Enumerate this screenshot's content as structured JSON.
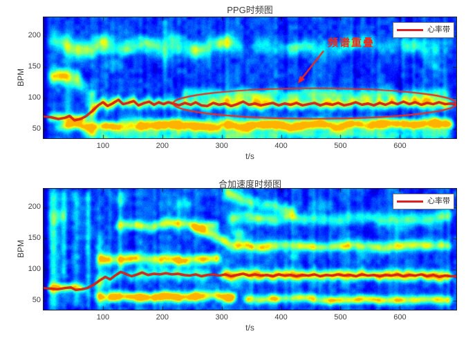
{
  "page": {
    "background": "#ffffff"
  },
  "chart_data": [
    {
      "type": "heatmap",
      "title": "PPG时频图",
      "xlabel": "t/s",
      "ylabel": "BPM",
      "xlim": [
        0,
        695
      ],
      "ylim": [
        35,
        230
      ],
      "xticks": [
        100,
        200,
        300,
        400,
        500,
        600
      ],
      "yticks": [
        50,
        100,
        150,
        200
      ],
      "colormap": "jet",
      "grid": false,
      "legend": {
        "label": "心率带",
        "position": "northeast",
        "line_color": "#e02020"
      },
      "hr_line": {
        "name": "心率带",
        "color": "#e82420",
        "points": [
          [
            0,
            70
          ],
          [
            12,
            69
          ],
          [
            25,
            66
          ],
          [
            36,
            68
          ],
          [
            44,
            71
          ],
          [
            52,
            64
          ],
          [
            62,
            66
          ],
          [
            72,
            71
          ],
          [
            82,
            79
          ],
          [
            92,
            88
          ],
          [
            100,
            93
          ],
          [
            108,
            87
          ],
          [
            116,
            91
          ],
          [
            126,
            97
          ],
          [
            134,
            90
          ],
          [
            142,
            92
          ],
          [
            152,
            95
          ],
          [
            160,
            88
          ],
          [
            170,
            92
          ],
          [
            178,
            94
          ],
          [
            186,
            89
          ],
          [
            194,
            93
          ],
          [
            202,
            90
          ],
          [
            210,
            93
          ],
          [
            218,
            91
          ],
          [
            228,
            88
          ],
          [
            238,
            92
          ],
          [
            248,
            89
          ],
          [
            256,
            93
          ],
          [
            266,
            88
          ],
          [
            276,
            87
          ],
          [
            286,
            92
          ],
          [
            296,
            89
          ],
          [
            306,
            91
          ],
          [
            316,
            87
          ],
          [
            326,
            90
          ],
          [
            336,
            94
          ],
          [
            346,
            89
          ],
          [
            356,
            91
          ],
          [
            366,
            88
          ],
          [
            376,
            90
          ],
          [
            386,
            92
          ],
          [
            396,
            88
          ],
          [
            406,
            91
          ],
          [
            416,
            89
          ],
          [
            426,
            92
          ],
          [
            436,
            88
          ],
          [
            446,
            90
          ],
          [
            456,
            92
          ],
          [
            466,
            88
          ],
          [
            476,
            91
          ],
          [
            486,
            89
          ],
          [
            496,
            92
          ],
          [
            506,
            88
          ],
          [
            516,
            90
          ],
          [
            526,
            93
          ],
          [
            536,
            89
          ],
          [
            546,
            91
          ],
          [
            556,
            88
          ],
          [
            566,
            92
          ],
          [
            576,
            89
          ],
          [
            586,
            93
          ],
          [
            596,
            90
          ],
          [
            606,
            94
          ],
          [
            616,
            90
          ],
          [
            626,
            93
          ],
          [
            636,
            89
          ],
          [
            646,
            92
          ],
          [
            656,
            90
          ],
          [
            666,
            93
          ],
          [
            676,
            90
          ],
          [
            686,
            91
          ],
          [
            695,
            90
          ]
        ]
      },
      "annotation": {
        "text": "频谱重叠",
        "color": "#f02a1a",
        "text_at": {
          "t": 518,
          "bpm": 190
        },
        "arrow": {
          "from": {
            "t": 471,
            "bpm": 175
          },
          "to": {
            "t": 428,
            "bpm": 123
          }
        },
        "ellipse": {
          "t": 457,
          "bpm": 91,
          "rt": 239,
          "rbpm": 24.5
        }
      },
      "texture": {
        "seed": 7,
        "base": 0.1,
        "bands": [
          {
            "bpm": 55,
            "width": 5.5,
            "wiggle": 3.5,
            "t": [
              14,
              695
            ],
            "i": 0.55,
            "ramp": 110
          },
          {
            "bpm": 68,
            "width": 5,
            "wiggle": 2,
            "t": [
              0,
              78
            ],
            "i": 0.42
          },
          {
            "follow": true,
            "offset": 0,
            "width": 6,
            "wiggle": 0,
            "t": [
              70,
              695
            ],
            "i": 0.38
          },
          {
            "bpm": 104,
            "width": 7,
            "wiggle": 4,
            "t": [
              225,
              690
            ],
            "i": 0.26
          },
          {
            "bpm": 62,
            "width": 5,
            "wiggle": 3,
            "t": [
              120,
              695
            ],
            "i": 0.2
          },
          {
            "bpm": 40,
            "width": 6,
            "wiggle": 3,
            "t": [
              60,
              695
            ],
            "i": 0.22
          },
          {
            "bpm": 183,
            "width": 10,
            "wiggle": 8,
            "t": [
              25,
              345
            ],
            "i": 0.22
          },
          {
            "bpm": 185,
            "width": 9,
            "wiggle": 8,
            "t": [
              345,
              695
            ],
            "i": 0.17
          },
          {
            "bpm": 135,
            "width": 8,
            "wiggle": 5,
            "t": [
              0,
              70
            ],
            "i": 0.3
          }
        ],
        "columns": [
          {
            "t": 80,
            "w": 7,
            "i": 0.22,
            "range": [
              35,
              115
            ]
          },
          {
            "t": 40,
            "w": 5,
            "i": 0.1,
            "range": [
              35,
              230
            ]
          },
          {
            "t": 205,
            "w": 5,
            "i": 0.1,
            "range": [
              120,
              230
            ]
          }
        ],
        "blobs": [
          {
            "t": 25,
            "bpm": 190,
            "rt": 14,
            "rb": 9,
            "i": 0.22
          },
          {
            "t": 58,
            "bpm": 172,
            "rt": 12,
            "rb": 8,
            "i": 0.2
          },
          {
            "t": 100,
            "bpm": 193,
            "rt": 12,
            "rb": 8,
            "i": 0.22
          },
          {
            "t": 140,
            "bpm": 178,
            "rt": 11,
            "rb": 7,
            "i": 0.2
          },
          {
            "t": 180,
            "bpm": 190,
            "rt": 12,
            "rb": 7,
            "i": 0.2
          },
          {
            "t": 220,
            "bpm": 195,
            "rt": 10,
            "rb": 7,
            "i": 0.18
          },
          {
            "t": 262,
            "bpm": 180,
            "rt": 11,
            "rb": 7,
            "i": 0.17
          },
          {
            "t": 305,
            "bpm": 190,
            "rt": 12,
            "rb": 7,
            "i": 0.18
          },
          {
            "t": 30,
            "bpm": 135,
            "rt": 12,
            "rb": 8,
            "i": 0.22
          },
          {
            "t": 62,
            "bpm": 120,
            "rt": 9,
            "rb": 7,
            "i": 0.2
          },
          {
            "t": 120,
            "bpm": 152,
            "rt": 9,
            "rb": 6,
            "i": 0.16
          },
          {
            "t": 430,
            "bpm": 182,
            "rt": 11,
            "rb": 7,
            "i": 0.14
          },
          {
            "t": 520,
            "bpm": 188,
            "rt": 11,
            "rb": 7,
            "i": 0.14
          },
          {
            "t": 615,
            "bpm": 180,
            "rt": 11,
            "rb": 7,
            "i": 0.14
          },
          {
            "t": 660,
            "bpm": 150,
            "rt": 9,
            "rb": 6,
            "i": 0.13
          }
        ]
      }
    },
    {
      "type": "heatmap",
      "title": "合加速度时频图",
      "xlabel": "t/s",
      "ylabel": "BPM",
      "xlim": [
        0,
        695
      ],
      "ylim": [
        35,
        230
      ],
      "xticks": [
        100,
        200,
        300,
        400,
        500,
        600
      ],
      "yticks": [
        50,
        100,
        150,
        200
      ],
      "colormap": "jet",
      "grid": false,
      "legend": {
        "label": "心率带",
        "position": "northeast",
        "line_color": "#e02020"
      },
      "hr_line": {
        "name": "心率带",
        "color": "#e82420",
        "points": [
          [
            0,
            70
          ],
          [
            12,
            69
          ],
          [
            24,
            68
          ],
          [
            36,
            70
          ],
          [
            46,
            71
          ],
          [
            54,
            67
          ],
          [
            64,
            68
          ],
          [
            74,
            70
          ],
          [
            84,
            75
          ],
          [
            94,
            82
          ],
          [
            104,
            88
          ],
          [
            112,
            84
          ],
          [
            122,
            91
          ],
          [
            130,
            96
          ],
          [
            140,
            92
          ],
          [
            148,
            89
          ],
          [
            158,
            92
          ],
          [
            166,
            95
          ],
          [
            176,
            91
          ],
          [
            186,
            93
          ],
          [
            196,
            92
          ],
          [
            206,
            94
          ],
          [
            216,
            92
          ],
          [
            226,
            93
          ],
          [
            236,
            91
          ],
          [
            246,
            90
          ],
          [
            256,
            92
          ],
          [
            266,
            89
          ],
          [
            276,
            91
          ],
          [
            286,
            92
          ],
          [
            296,
            90
          ],
          [
            306,
            92
          ],
          [
            316,
            89
          ],
          [
            326,
            91
          ],
          [
            336,
            93
          ],
          [
            346,
            90
          ],
          [
            356,
            92
          ],
          [
            366,
            90
          ],
          [
            376,
            91
          ],
          [
            386,
            89
          ],
          [
            396,
            92
          ],
          [
            406,
            90
          ],
          [
            416,
            91
          ],
          [
            426,
            89
          ],
          [
            436,
            91
          ],
          [
            446,
            90
          ],
          [
            456,
            92
          ],
          [
            466,
            89
          ],
          [
            476,
            91
          ],
          [
            486,
            90
          ],
          [
            496,
            92
          ],
          [
            506,
            90
          ],
          [
            516,
            91
          ],
          [
            526,
            89
          ],
          [
            536,
            92
          ],
          [
            546,
            90
          ],
          [
            556,
            91
          ],
          [
            566,
            89
          ],
          [
            576,
            91
          ],
          [
            586,
            90
          ],
          [
            596,
            92
          ],
          [
            606,
            89
          ],
          [
            616,
            91
          ],
          [
            626,
            90
          ],
          [
            636,
            92
          ],
          [
            646,
            89
          ],
          [
            656,
            91
          ],
          [
            666,
            88
          ],
          [
            676,
            90
          ],
          [
            686,
            89
          ],
          [
            695,
            89
          ]
        ]
      },
      "texture": {
        "seed": 21,
        "base": 0.11,
        "bands": [
          {
            "bpm": 56,
            "width": 5.5,
            "wiggle": 3,
            "t": [
              82,
              330
            ],
            "i": 0.58
          },
          {
            "bpm": 52,
            "width": 5,
            "wiggle": 3,
            "t": [
              330,
              695
            ],
            "i": 0.42
          },
          {
            "bpm": 116,
            "width": 6,
            "wiggle": 3.5,
            "t": [
              85,
              305
            ],
            "i": 0.44
          },
          {
            "bpm": 172,
            "width": 6,
            "wiggle": 4,
            "t": [
              115,
              300
            ],
            "i": 0.34
          },
          {
            "follow": true,
            "offset": 0,
            "width": 6,
            "wiggle": 0,
            "t": [
              290,
              695
            ],
            "i": 0.5
          },
          {
            "follow": true,
            "offset": 0,
            "width": 7,
            "wiggle": 0,
            "t": [
              80,
              290
            ],
            "i": 0.22
          },
          {
            "bpm": 137,
            "width": 6,
            "wiggle": 3,
            "t": [
              305,
              695
            ],
            "i": 0.38
          },
          {
            "bpm": 183,
            "width": 7,
            "wiggle": 4,
            "t": [
              305,
              695
            ],
            "i": 0.26
          },
          {
            "bpm": 70,
            "width": 5,
            "wiggle": 2,
            "t": [
              0,
              78
            ],
            "i": 0.36
          },
          {
            "bpm": 172,
            "bpm_end": 140,
            "width": 6,
            "wiggle": 2,
            "t": [
              240,
              320
            ],
            "i": 0.3
          },
          {
            "bpm": 225,
            "bpm_end": 188,
            "width": 7,
            "wiggle": 3,
            "t": [
              295,
              430
            ],
            "i": 0.22
          }
        ],
        "columns": [
          {
            "t": 16,
            "w": 5,
            "i": 0.16,
            "range": [
              35,
              230
            ]
          },
          {
            "t": 34,
            "w": 4,
            "i": 0.13,
            "range": [
              80,
              230
            ]
          },
          {
            "t": 55,
            "w": 5,
            "i": 0.16,
            "range": [
              35,
              230
            ]
          },
          {
            "t": 74,
            "w": 4,
            "i": 0.14,
            "range": [
              50,
              230
            ]
          },
          {
            "t": 95,
            "w": 5,
            "i": 0.14,
            "range": [
              35,
              160
            ]
          },
          {
            "t": 130,
            "w": 5,
            "i": 0.1,
            "range": [
              100,
              230
            ]
          }
        ],
        "blobs": [
          {
            "t": 25,
            "bpm": 185,
            "rt": 11,
            "rb": 9,
            "i": 0.18
          },
          {
            "t": 130,
            "bpm": 212,
            "rt": 11,
            "rb": 8,
            "i": 0.18
          },
          {
            "t": 235,
            "bpm": 205,
            "rt": 13,
            "rb": 8,
            "i": 0.18
          },
          {
            "t": 330,
            "bpm": 158,
            "rt": 9,
            "rb": 7,
            "i": 0.2
          },
          {
            "t": 470,
            "bpm": 205,
            "rt": 11,
            "rb": 7,
            "i": 0.13
          },
          {
            "t": 600,
            "bpm": 162,
            "rt": 11,
            "rb": 7,
            "i": 0.14
          },
          {
            "t": 545,
            "bpm": 120,
            "rt": 10,
            "rb": 7,
            "i": 0.12
          },
          {
            "t": 420,
            "bpm": 120,
            "rt": 10,
            "rb": 7,
            "i": 0.12
          }
        ]
      }
    }
  ]
}
